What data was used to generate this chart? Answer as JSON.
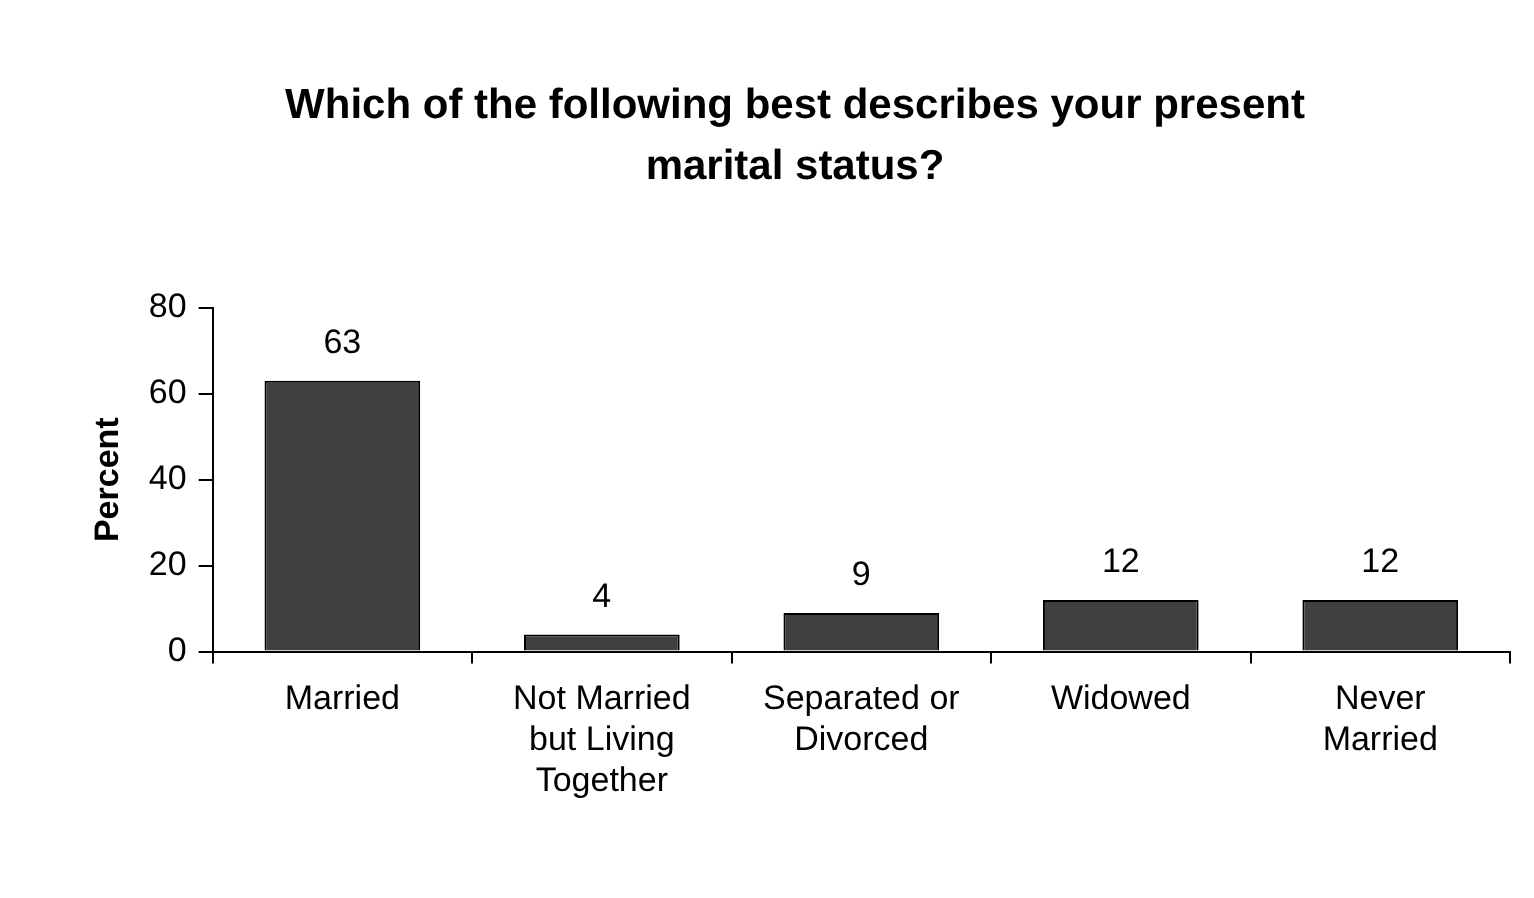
{
  "chart_data": {
    "type": "bar",
    "title": "Which of the following best describes your present marital status?",
    "ylabel": "Percent",
    "categories": [
      "Married",
      "Not Married but Living Together",
      "Separated or Divorced",
      "Widowed",
      "Never Married"
    ],
    "values": [
      63,
      4,
      9,
      12,
      12
    ],
    "color": "#404040",
    "ylim": [
      0,
      80
    ],
    "yticks": [
      0,
      20,
      40,
      60,
      80
    ],
    "grid": false,
    "data_labels": true
  }
}
